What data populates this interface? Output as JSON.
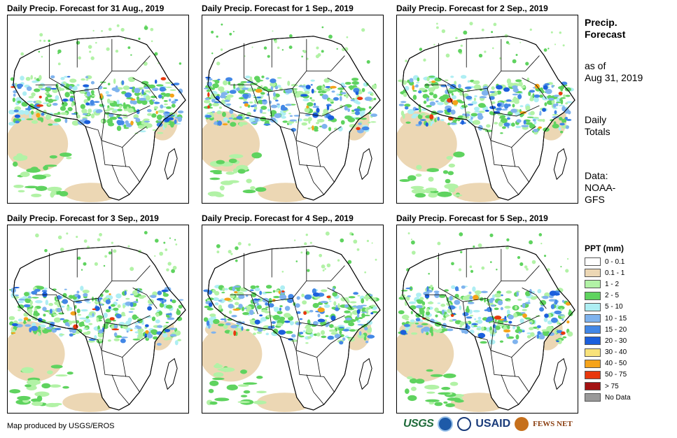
{
  "panels": [
    {
      "title": "Daily Precip. Forecast for 31 Aug., 2019",
      "variant": 0
    },
    {
      "title": "Daily Precip. Forecast for 1 Sep., 2019",
      "variant": 1
    },
    {
      "title": "Daily Precip. Forecast for 2 Sep., 2019",
      "variant": 2
    },
    {
      "title": "Daily Precip. Forecast for 3 Sep., 2019",
      "variant": 3
    },
    {
      "title": "Daily Precip. Forecast for 4 Sep., 2019",
      "variant": 4
    },
    {
      "title": "Daily Precip. Forecast for 5 Sep., 2019",
      "variant": 5
    }
  ],
  "sidebar": {
    "title_line1": "Precip.",
    "title_line2": "Forecast",
    "asof_line1": "as of",
    "asof_line2": "Aug 31, 2019",
    "totals_line1": "Daily",
    "totals_line2": "Totals",
    "data_line1": "Data:",
    "data_line2": "NOAA-",
    "data_line3": "GFS"
  },
  "legend": {
    "title": "PPT (mm)",
    "items": [
      {
        "label": "0 - 0.1",
        "color": "#ffffff"
      },
      {
        "label": "0.1 - 1",
        "color": "#ecd7b4"
      },
      {
        "label": "1 - 2",
        "color": "#b2f2a6"
      },
      {
        "label": "2 - 5",
        "color": "#5fd35f"
      },
      {
        "label": "5 - 10",
        "color": "#aeeef3"
      },
      {
        "label": "10 - 15",
        "color": "#7fb3ee"
      },
      {
        "label": "15 - 20",
        "color": "#4287e6"
      },
      {
        "label": "20 - 30",
        "color": "#1b5fdc"
      },
      {
        "label": "30 - 40",
        "color": "#f8e27a"
      },
      {
        "label": "40 - 50",
        "color": "#f5a31a"
      },
      {
        "label": "50 - 75",
        "color": "#e8380d"
      },
      {
        "label": "> 75",
        "color": "#a31212"
      },
      {
        "label": "No Data",
        "color": "#999999"
      }
    ]
  },
  "footer": {
    "credit": "Map produced by USGS/EROS"
  },
  "logos": {
    "usgs": "USGS",
    "usaid": "USAID",
    "fews": "FEWS NET"
  }
}
